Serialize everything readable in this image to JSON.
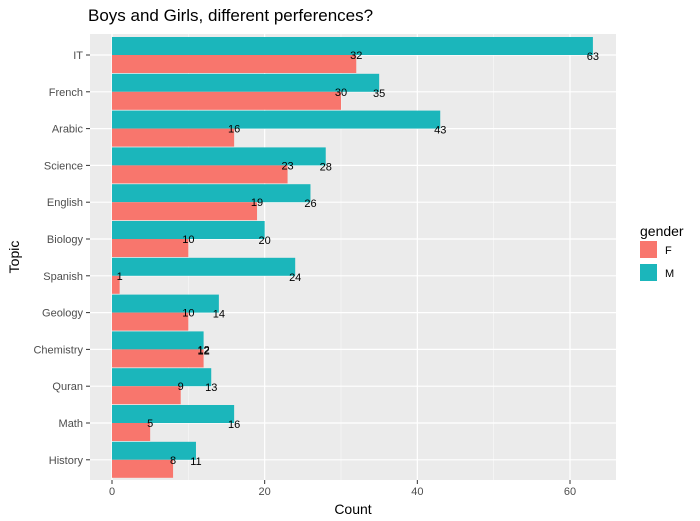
{
  "chart_data": {
    "type": "bar",
    "orientation": "horizontal",
    "title": "Boys and Girls, different perferences?",
    "xlabel": "Count",
    "ylabel": "Topic",
    "xlim": [
      0,
      66
    ],
    "x_ticks": [
      0,
      20,
      40,
      60
    ],
    "grid": true,
    "categories": [
      "IT",
      "French",
      "Arabic",
      "Science",
      "English",
      "Biology",
      "Spanish",
      "Geology",
      "Chemistry",
      "Quran",
      "Math",
      "History"
    ],
    "series": [
      {
        "name": "F",
        "color": "#F8766D",
        "values": [
          32,
          30,
          16,
          23,
          19,
          10,
          1,
          10,
          12,
          9,
          5,
          8
        ]
      },
      {
        "name": "M",
        "color": "#00BFC4",
        "values": [
          63,
          35,
          43,
          28,
          26,
          20,
          24,
          14,
          12,
          13,
          16,
          11
        ]
      }
    ],
    "legend": {
      "title": "gender",
      "position": "right"
    }
  },
  "colors": {
    "panel_background": "#EBEBEB",
    "grid_major": "#FFFFFF",
    "bar_f": "#F8766D",
    "bar_m": "#1BB6BB"
  }
}
